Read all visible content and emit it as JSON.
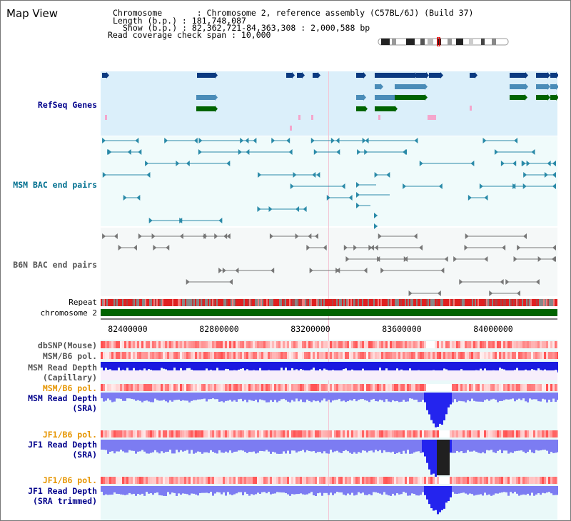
{
  "window": {
    "title": "Map View"
  },
  "header": {
    "chromosome": "Chromosome       : Chromosome 2, reference assembly (C57BL/6J) (Build 37)",
    "length": "Length (b.p.) : 181,748,087",
    "show": "Show (b.p.) : 82,362,721-84,363,308 : 2,000,588 bp",
    "coverage": "Read coverage check span : 10,000"
  },
  "tracks": {
    "refseq": "RefSeq Genes",
    "msm_bac": "MSM BAC end pairs",
    "b6n_bac": "B6N BAC end pairs",
    "repeat": "Repeat",
    "chromosome": "chromosome 2",
    "dbsnp": "dbSNP(Mouse)",
    "msm_b6_pol": "MSM/B6 pol.",
    "msm_depth_cap_1": "MSM Read Depth",
    "msm_depth_cap_2": "(Capillary)",
    "msm_b6_pol2": "MSM/B6 pol.",
    "msm_depth_sra_1": "MSM Read Depth",
    "msm_depth_sra_2": "(SRA)",
    "jf1_b6_pol": "JF1/B6 pol.",
    "jf1_depth_sra_1": "JF1 Read Depth",
    "jf1_depth_sra_2": "(SRA)",
    "jf1_b6_pol2": "JF1/B6 pol.",
    "jf1_depth_trim_1": "JF1 Read Depth",
    "jf1_depth_trim_2": "(SRA trimmed)"
  },
  "axis": {
    "ticks": [
      "82400000",
      "82800000",
      "83200000",
      "83600000",
      "84000000"
    ],
    "tick_values": [
      82400000,
      82800000,
      83200000,
      83600000,
      84000000
    ],
    "range": [
      82362721,
      84363308
    ]
  },
  "colors": {
    "refseq_bg": "#dbeffa",
    "bac_bg": "#f0fbfb",
    "depth_bg": "#eaf9f9",
    "blue_label": "#00008b",
    "orange_label": "#e69500",
    "teal_label": "#006f8f",
    "gray_label": "#555555",
    "green_chrom": "#006400"
  }
}
